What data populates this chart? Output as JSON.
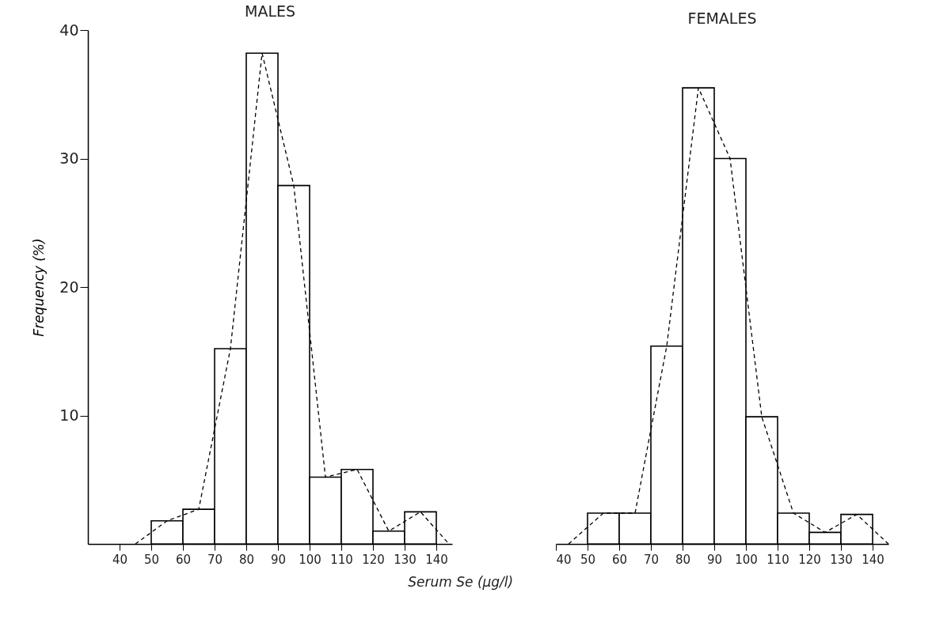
{
  "chart_data": [
    {
      "type": "histogram",
      "title": "MALES",
      "ylabel": "Frequency (%)",
      "xlabel": "Serum Se (μg/l)",
      "bins": [
        50,
        60,
        70,
        80,
        90,
        100,
        110,
        120,
        130,
        140
      ],
      "values": [
        1.8,
        2.7,
        15.2,
        38.2,
        27.9,
        5.2,
        5.8,
        1.0,
        2.5
      ],
      "series": [
        {
          "type": "line",
          "line_style": "dashed",
          "x": [
            45,
            55,
            65,
            75,
            85,
            95,
            105,
            115,
            125,
            135,
            144
          ],
          "values": [
            0,
            1.8,
            2.7,
            15.2,
            38.2,
            27.9,
            5.2,
            5.8,
            1.0,
            2.5,
            0
          ]
        }
      ],
      "xlim": [
        30,
        145
      ],
      "xticks": [
        40,
        50,
        60,
        70,
        80,
        90,
        100,
        110,
        120,
        130,
        140
      ],
      "ylim": [
        0,
        40
      ],
      "yticks": [
        10,
        20,
        30,
        40
      ]
    },
    {
      "type": "histogram",
      "title": "FEMALES",
      "bins": [
        50,
        60,
        70,
        80,
        90,
        100,
        110,
        120,
        130,
        140
      ],
      "values": [
        2.4,
        2.4,
        15.4,
        35.5,
        30.0,
        9.9,
        2.4,
        0.9,
        2.3
      ],
      "series": [
        {
          "type": "line",
          "line_style": "dashed",
          "x": [
            44,
            55,
            65,
            75,
            85,
            95,
            105,
            115,
            125,
            135,
            145
          ],
          "values": [
            0,
            2.4,
            2.4,
            15.4,
            35.5,
            30.0,
            9.9,
            2.4,
            0.9,
            2.3,
            0
          ]
        }
      ],
      "xlim": [
        40,
        145
      ],
      "xticks": [
        40,
        50,
        60,
        70,
        80,
        90,
        100,
        110,
        120,
        130,
        140
      ],
      "ylim": [
        0,
        40
      ],
      "yticks": [
        10,
        20,
        30,
        40
      ],
      "tick_labels": "x"
    }
  ]
}
